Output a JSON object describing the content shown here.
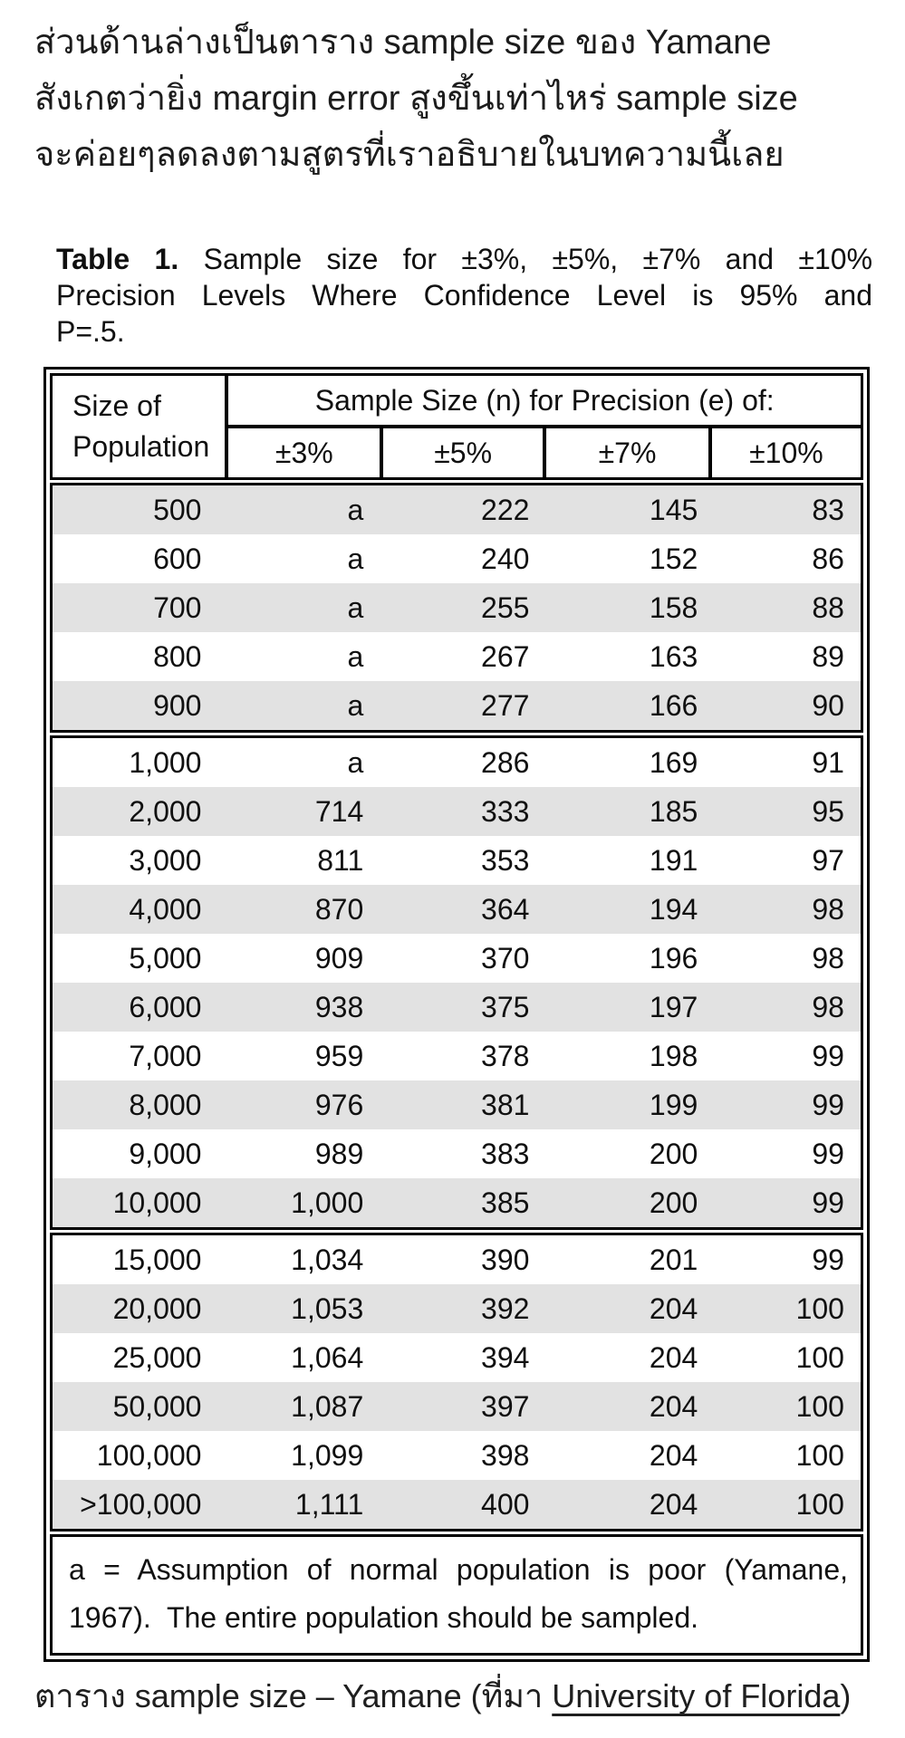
{
  "intro": {
    "lines": [
      "ส่วนด้านล่างเป็นตาราง sample size ของ Yamane",
      "สังเกตว่ายิ่ง margin error สูงขึ้นเท่าไหร่ sample size",
      "จะค่อยๆลดลงตามสูตรที่เราอธิบายในบทความนี้เลย"
    ]
  },
  "table": {
    "title": {
      "line1_bold": "Table 1.",
      "line1_rest": "Sample size for ±3%, ±5%, ±7% and ±10%",
      "line2": "Precision Levels Where Confidence Level is 95% and",
      "line3": "P=.5."
    },
    "header": {
      "population_line1": "Size of",
      "population_line2": "Population",
      "span_label": "Sample Size (n) for Precision (e) of:",
      "precision_cols": [
        "±3%",
        "±5%",
        "±7%",
        "±10%"
      ]
    },
    "columns": [
      "Size of Population",
      "±3%",
      "±5%",
      "±7%",
      "±10%"
    ],
    "groups": [
      {
        "first_stripe": "gray",
        "rows": [
          [
            "500",
            "a",
            "222",
            "145",
            "83"
          ],
          [
            "600",
            "a",
            "240",
            "152",
            "86"
          ],
          [
            "700",
            "a",
            "255",
            "158",
            "88"
          ],
          [
            "800",
            "a",
            "267",
            "163",
            "89"
          ],
          [
            "900",
            "a",
            "277",
            "166",
            "90"
          ]
        ]
      },
      {
        "first_stripe": "white",
        "rows": [
          [
            "1,000",
            "a",
            "286",
            "169",
            "91"
          ],
          [
            "2,000",
            "714",
            "333",
            "185",
            "95"
          ],
          [
            "3,000",
            "811",
            "353",
            "191",
            "97"
          ],
          [
            "4,000",
            "870",
            "364",
            "194",
            "98"
          ],
          [
            "5,000",
            "909",
            "370",
            "196",
            "98"
          ],
          [
            "6,000",
            "938",
            "375",
            "197",
            "98"
          ],
          [
            "7,000",
            "959",
            "378",
            "198",
            "99"
          ],
          [
            "8,000",
            "976",
            "381",
            "199",
            "99"
          ],
          [
            "9,000",
            "989",
            "383",
            "200",
            "99"
          ],
          [
            "10,000",
            "1,000",
            "385",
            "200",
            "99"
          ]
        ]
      },
      {
        "first_stripe": "white",
        "rows": [
          [
            "15,000",
            "1,034",
            "390",
            "201",
            "99"
          ],
          [
            "20,000",
            "1,053",
            "392",
            "204",
            "100"
          ],
          [
            "25,000",
            "1,064",
            "394",
            "204",
            "100"
          ],
          [
            "50,000",
            "1,087",
            "397",
            "204",
            "100"
          ],
          [
            "100,000",
            "1,099",
            "398",
            "204",
            "100"
          ],
          [
            ">100,000",
            "1,111",
            "400",
            "204",
            "100"
          ]
        ]
      }
    ],
    "footnote_line1": "a = Assumption of normal population is poor (Yamane,",
    "footnote_line2": "1967).  The entire population should be sampled."
  },
  "caption": {
    "prefix": "ตาราง sample size – Yamane (ที่มา ",
    "link_text": "University of Florida",
    "suffix": ")"
  },
  "colors": {
    "stripe_gray": "#e2e2e2",
    "border_black": "#000000",
    "text": "#1c1c1c"
  }
}
